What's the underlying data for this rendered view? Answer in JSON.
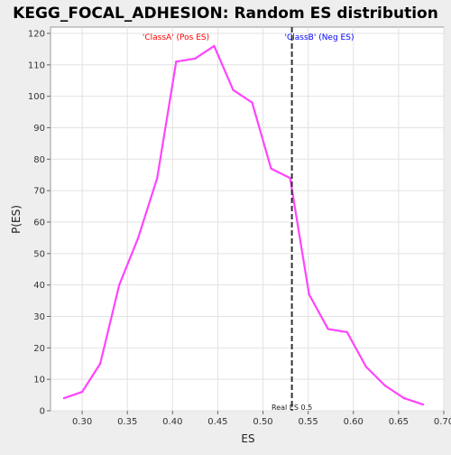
{
  "chart_data": {
    "type": "line",
    "title": "KEGG_FOCAL_ADHESION: Random ES distribution",
    "xlabel": "ES",
    "ylabel": "P(ES)",
    "xlim": [
      0.265,
      0.7
    ],
    "ylim": [
      0,
      122
    ],
    "x_ticks": [
      0.3,
      0.35,
      0.4,
      0.45,
      0.5,
      0.55,
      0.6,
      0.65,
      0.7
    ],
    "x_tick_labels": [
      "0.30",
      "0.35",
      "0.40",
      "0.45",
      "0.50",
      "0.55",
      "0.60",
      "0.65",
      "0.70"
    ],
    "y_ticks": [
      0,
      10,
      20,
      30,
      40,
      50,
      60,
      70,
      80,
      90,
      100,
      110,
      120
    ],
    "y_tick_labels": [
      "0",
      "10",
      "20",
      "30",
      "40",
      "50",
      "60",
      "70",
      "80",
      "90",
      "100",
      "110",
      "120"
    ],
    "grid": true,
    "series": [
      {
        "color": "#ff44ff",
        "x": [
          0.28,
          0.3,
          0.32,
          0.341,
          0.362,
          0.383,
          0.404,
          0.425,
          0.446,
          0.467,
          0.488,
          0.509,
          0.53,
          0.551,
          0.572,
          0.593,
          0.614,
          0.635,
          0.656,
          0.677
        ],
        "y": [
          4,
          6,
          15,
          40,
          55,
          74,
          111,
          112,
          116,
          102,
          98,
          77,
          74,
          37,
          26,
          25,
          14,
          8,
          4,
          2
        ]
      }
    ],
    "annotations": {
      "left_label": "'ClassA' (Pos ES)",
      "left_label_color": "#ff0000",
      "right_label": "'ClassB' (Neg ES)",
      "right_label_color": "#0000ff",
      "real_es_label": "Real ES 0.5",
      "real_es_x": 0.532
    }
  }
}
